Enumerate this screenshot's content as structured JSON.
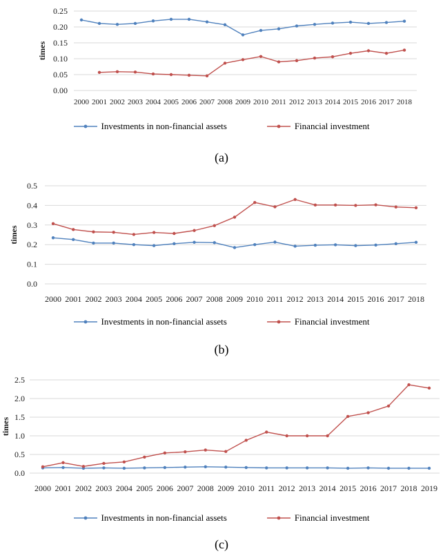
{
  "colors": {
    "investments_line": "#4F81BD",
    "financial_line": "#C0504D",
    "gridline": "#D9D9D9",
    "text": "#1a1a1a"
  },
  "chart_data": [
    {
      "id": "a",
      "type": "line",
      "caption": "(a)",
      "ylabel": "times",
      "ylim": [
        0,
        0.25
      ],
      "ytick_labels": [
        "0.00",
        "0.05",
        "0.10",
        "0.15",
        "0.20",
        "0.25"
      ],
      "grid": true,
      "legend_position": "bottom",
      "categories": [
        "2000",
        "2001",
        "2002",
        "2003",
        "2004",
        "2005",
        "2006",
        "2007",
        "2008",
        "2009",
        "2010",
        "2011",
        "2012",
        "2013",
        "2014",
        "2015",
        "2016",
        "2017",
        "2018"
      ],
      "series": [
        {
          "name": "Investments in non-financial assets",
          "color": "#4F81BD",
          "values": [
            0.222,
            0.211,
            0.208,
            0.211,
            0.219,
            0.224,
            0.224,
            0.216,
            0.207,
            0.175,
            0.189,
            0.194,
            0.203,
            0.208,
            0.212,
            0.215,
            0.211,
            0.214,
            0.218
          ]
        },
        {
          "name": "Financial investment",
          "color": "#C0504D",
          "values": [
            null,
            0.057,
            0.059,
            0.058,
            0.052,
            0.05,
            0.048,
            0.046,
            0.086,
            0.097,
            0.107,
            0.09,
            0.094,
            0.102,
            0.106,
            0.117,
            0.125,
            0.117,
            0.127
          ]
        }
      ]
    },
    {
      "id": "b",
      "type": "line",
      "caption": "(b)",
      "ylabel": "times",
      "ylim": [
        0,
        0.5
      ],
      "ytick_labels": [
        "0.0",
        "0.1",
        "0.2",
        "0.3",
        "0.4",
        "0.5"
      ],
      "grid": true,
      "legend_position": "bottom",
      "categories": [
        "2000",
        "2001",
        "2002",
        "2003",
        "2004",
        "2005",
        "2006",
        "2007",
        "2008",
        "2009",
        "2010",
        "2011",
        "2012",
        "2013",
        "2014",
        "2015",
        "2016",
        "2017",
        "2018"
      ],
      "series": [
        {
          "name": "Investments in non-financial assets",
          "color": "#4F81BD",
          "values": [
            0.235,
            0.226,
            0.208,
            0.208,
            0.2,
            0.195,
            0.205,
            0.212,
            0.21,
            0.185,
            0.2,
            0.213,
            0.192,
            0.197,
            0.199,
            0.195,
            0.198,
            0.205,
            0.212
          ]
        },
        {
          "name": "Financial investment",
          "color": "#C0504D",
          "values": [
            0.307,
            0.277,
            0.265,
            0.263,
            0.252,
            0.262,
            0.257,
            0.272,
            0.297,
            0.34,
            0.415,
            0.393,
            0.43,
            0.402,
            0.402,
            0.4,
            0.403,
            0.392,
            0.388
          ]
        }
      ]
    },
    {
      "id": "c",
      "type": "line",
      "caption": "(c)",
      "ylabel": "times",
      "ylim": [
        0,
        2.5
      ],
      "ytick_labels": [
        "0.0",
        "0.5",
        "1.0",
        "1.5",
        "2.0",
        "2.5"
      ],
      "grid": true,
      "legend_position": "bottom",
      "categories": [
        "2000",
        "2001",
        "2002",
        "2003",
        "2004",
        "2005",
        "2006",
        "2007",
        "2008",
        "2009",
        "2010",
        "2011",
        "2012",
        "2013",
        "2014",
        "2015",
        "2016",
        "2017",
        "2018",
        "2019"
      ],
      "series": [
        {
          "name": "Investments in non-financial assets",
          "color": "#4F81BD",
          "values": [
            0.14,
            0.15,
            0.13,
            0.14,
            0.13,
            0.14,
            0.15,
            0.16,
            0.17,
            0.16,
            0.15,
            0.14,
            0.14,
            0.14,
            0.14,
            0.13,
            0.14,
            0.13,
            0.13,
            0.13
          ]
        },
        {
          "name": "Financial investment",
          "color": "#C0504D",
          "values": [
            0.17,
            0.28,
            0.18,
            0.26,
            0.3,
            0.43,
            0.54,
            0.57,
            0.62,
            0.58,
            0.88,
            1.1,
            1.0,
            1.0,
            1.0,
            1.52,
            1.62,
            1.8,
            2.37,
            2.28
          ]
        }
      ]
    }
  ]
}
